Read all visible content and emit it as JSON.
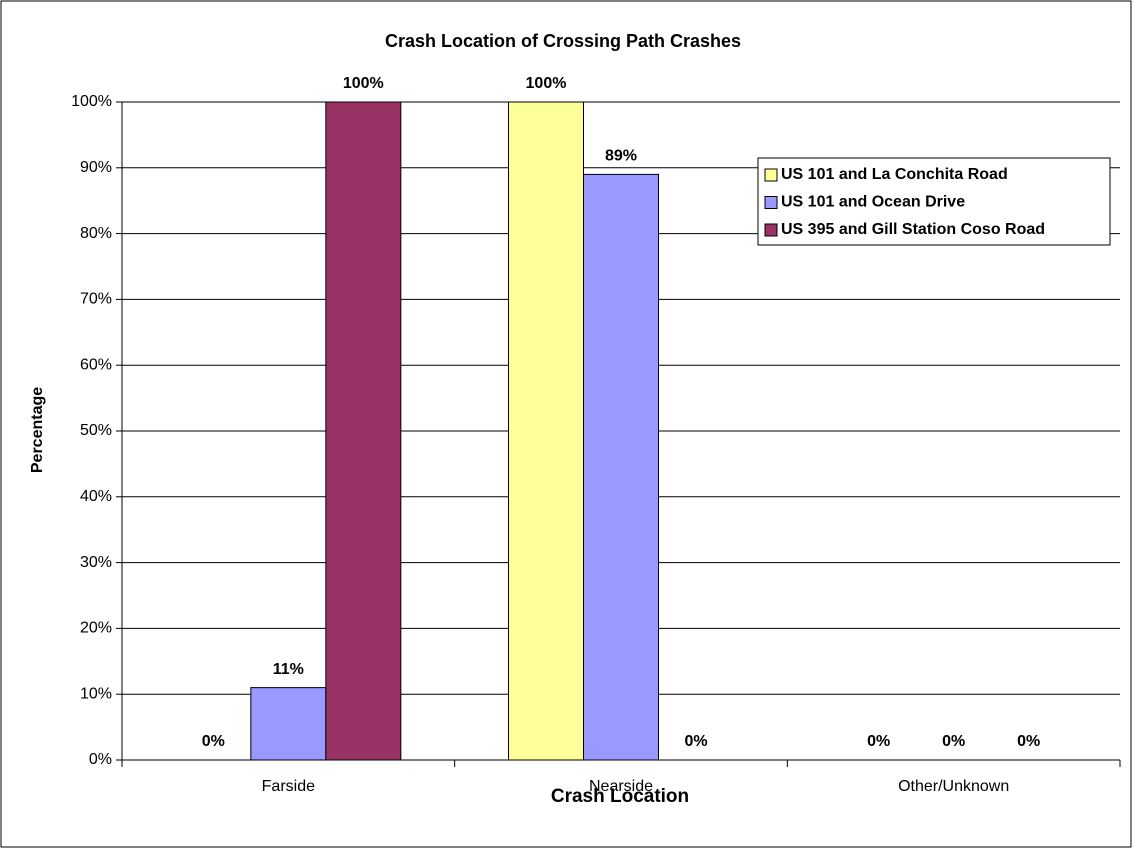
{
  "chart_data": {
    "type": "bar",
    "title": "Crash Location of Crossing Path Crashes",
    "x_label": "Crash Location",
    "y_label": "Percentage",
    "categories": [
      "Farside",
      "Nearside",
      "Other/Unknown"
    ],
    "series": [
      {
        "name": "US 101 and La Conchita Road",
        "color": "#ffff99",
        "values": [
          0,
          100,
          0
        ],
        "value_labels": [
          "0%",
          "100%",
          "0%"
        ]
      },
      {
        "name": "US 101 and Ocean Drive",
        "color": "#9999ff",
        "values": [
          11,
          89,
          0
        ],
        "value_labels": [
          "11%",
          "89%",
          "0%"
        ]
      },
      {
        "name": "US 395 and Gill Station Coso Road",
        "color": "#993366",
        "values": [
          100,
          0,
          0
        ],
        "value_labels": [
          "100%",
          "0%",
          "0%"
        ]
      }
    ],
    "ylim": [
      0,
      100
    ],
    "yticks": [
      {
        "value": 0,
        "label": "0%"
      },
      {
        "value": 10,
        "label": "10%"
      },
      {
        "value": 20,
        "label": "20%"
      },
      {
        "value": 30,
        "label": "30%"
      },
      {
        "value": 40,
        "label": "40%"
      },
      {
        "value": 50,
        "label": "50%"
      },
      {
        "value": 60,
        "label": "60%"
      },
      {
        "value": 70,
        "label": "70%"
      },
      {
        "value": 80,
        "label": "80%"
      },
      {
        "value": 90,
        "label": "90%"
      },
      {
        "value": 100,
        "label": "100%"
      }
    ],
    "grid": true,
    "legend": "upper right"
  }
}
